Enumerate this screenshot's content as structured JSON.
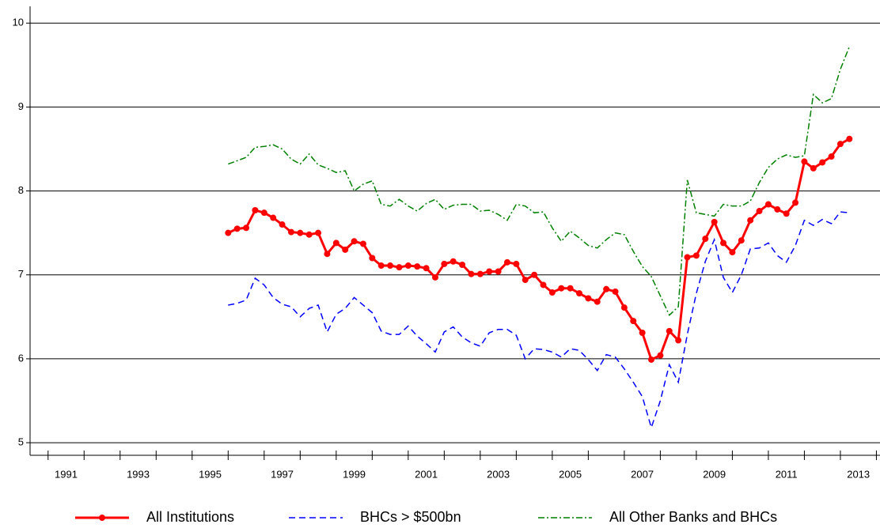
{
  "chart_data": {
    "type": "line",
    "x": [
      1996,
      1996.25,
      1996.5,
      1996.75,
      1997,
      1997.25,
      1997.5,
      1997.75,
      1998,
      1998.25,
      1998.5,
      1998.75,
      1999,
      1999.25,
      1999.5,
      1999.75,
      2000,
      2000.25,
      2000.5,
      2000.75,
      2001,
      2001.25,
      2001.5,
      2001.75,
      2002,
      2002.25,
      2002.5,
      2002.75,
      2003,
      2003.25,
      2003.5,
      2003.75,
      2004,
      2004.25,
      2004.5,
      2004.75,
      2005,
      2005.25,
      2005.5,
      2005.75,
      2006,
      2006.25,
      2006.5,
      2006.75,
      2007,
      2007.25,
      2007.5,
      2007.75,
      2008,
      2008.25,
      2008.5,
      2008.75,
      2009,
      2009.25,
      2009.5,
      2009.75,
      2010,
      2010.25,
      2010.5,
      2010.75,
      2011,
      2011.25,
      2011.5,
      2011.75,
      2012,
      2012.25,
      2012.5,
      2012.75,
      2013,
      2013.25
    ],
    "series": [
      {
        "name": "All Institutions",
        "color": "#ff0000",
        "values": [
          7.5,
          7.55,
          7.56,
          7.77,
          7.74,
          7.68,
          7.6,
          7.51,
          7.5,
          7.48,
          7.5,
          7.25,
          7.38,
          7.3,
          7.4,
          7.37,
          7.2,
          7.11,
          7.11,
          7.09,
          7.11,
          7.1,
          7.08,
          6.97,
          7.13,
          7.16,
          7.12,
          7.01,
          7.01,
          7.04,
          7.04,
          7.15,
          7.13,
          6.94,
          7.0,
          6.88,
          6.79,
          6.84,
          6.84,
          6.78,
          6.72,
          6.68,
          6.83,
          6.8,
          6.61,
          6.45,
          6.31,
          5.99,
          6.04,
          6.33,
          6.22,
          7.21,
          7.23,
          7.43,
          7.63,
          7.38,
          7.27,
          7.41,
          7.65,
          7.76,
          7.84,
          7.78,
          7.73,
          7.86,
          8.35,
          8.27,
          8.34,
          8.41,
          8.56,
          8.62
        ]
      },
      {
        "name": "BHCs > $500bn",
        "color": "#0000ff",
        "values": [
          6.64,
          6.66,
          6.7,
          6.96,
          6.88,
          6.73,
          6.65,
          6.62,
          6.5,
          6.6,
          6.64,
          6.32,
          6.53,
          6.6,
          6.73,
          6.64,
          6.55,
          6.33,
          6.29,
          6.29,
          6.39,
          6.27,
          6.18,
          6.08,
          6.32,
          6.38,
          6.26,
          6.19,
          6.15,
          6.31,
          6.35,
          6.35,
          6.28,
          6.0,
          6.12,
          6.11,
          6.08,
          6.02,
          6.12,
          6.1,
          5.99,
          5.86,
          6.05,
          6.02,
          5.88,
          5.72,
          5.55,
          5.18,
          5.5,
          5.93,
          5.72,
          6.29,
          6.78,
          7.16,
          7.42,
          6.97,
          6.79,
          7.0,
          7.31,
          7.32,
          7.38,
          7.23,
          7.15,
          7.35,
          7.65,
          7.59,
          7.66,
          7.61,
          7.75,
          7.74
        ]
      },
      {
        "name": "All Other Banks and BHCs",
        "color": "#008000",
        "values": [
          8.32,
          8.36,
          8.4,
          8.52,
          8.53,
          8.55,
          8.5,
          8.38,
          8.32,
          8.44,
          8.31,
          8.27,
          8.22,
          8.24,
          8.0,
          8.08,
          8.12,
          7.84,
          7.82,
          7.9,
          7.82,
          7.76,
          7.85,
          7.9,
          7.78,
          7.83,
          7.84,
          7.84,
          7.76,
          7.77,
          7.72,
          7.65,
          7.84,
          7.82,
          7.74,
          7.75,
          7.56,
          7.4,
          7.52,
          7.44,
          7.35,
          7.32,
          7.42,
          7.5,
          7.48,
          7.28,
          7.1,
          6.98,
          6.75,
          6.52,
          6.62,
          8.13,
          7.74,
          7.72,
          7.7,
          7.84,
          7.82,
          7.82,
          7.88,
          8.1,
          8.28,
          8.38,
          8.43,
          8.4,
          8.42,
          9.15,
          9.05,
          9.1,
          9.45,
          9.72
        ]
      }
    ],
    "xlim": [
      1990.5,
      2014.1
    ],
    "xticks": [
      {
        "value": 1991.5,
        "label": "1991"
      },
      {
        "value": 1993.5,
        "label": "1993"
      },
      {
        "value": 1995.5,
        "label": "1995"
      },
      {
        "value": 1997.5,
        "label": "1997"
      },
      {
        "value": 1999.5,
        "label": "1999"
      },
      {
        "value": 2001.5,
        "label": "2001"
      },
      {
        "value": 2003.5,
        "label": "2003"
      },
      {
        "value": 2005.5,
        "label": "2005"
      },
      {
        "value": 2007.5,
        "label": "2007"
      },
      {
        "value": 2009.5,
        "label": "2009"
      },
      {
        "value": 2011.5,
        "label": "2011"
      },
      {
        "value": 2013.5,
        "label": "2013"
      }
    ],
    "ylim": [
      4.85,
      10.2
    ],
    "yticks": [
      5,
      6,
      7,
      8,
      9,
      10
    ],
    "grid": true
  }
}
